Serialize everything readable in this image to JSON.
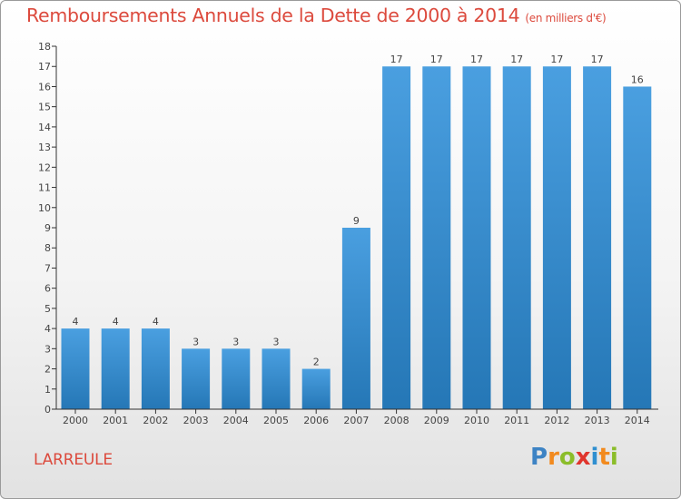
{
  "chart_data": {
    "type": "bar",
    "title": "Remboursements Annuels de la Dette de 2000 à 2014",
    "unit_note": "(en milliers d'€)",
    "categories": [
      "2000",
      "2001",
      "2002",
      "2003",
      "2004",
      "2005",
      "2006",
      "2007",
      "2008",
      "2009",
      "2010",
      "2011",
      "2012",
      "2013",
      "2014"
    ],
    "values": [
      4,
      4,
      4,
      3,
      3,
      3,
      2,
      9,
      17,
      17,
      17,
      17,
      17,
      17,
      16
    ],
    "ylim": [
      0,
      18
    ],
    "yticks": [
      0,
      1,
      2,
      3,
      4,
      5,
      6,
      7,
      8,
      9,
      10,
      11,
      12,
      13,
      14,
      15,
      16,
      17,
      18
    ],
    "xlabel": "",
    "ylabel": "",
    "grid": false,
    "bar_color": "#4a9fe0",
    "bar_color_dark": "#2577b6"
  },
  "commune": "LARREULE",
  "logo": {
    "text": "Proxiti",
    "letters": [
      "P",
      "r",
      "o",
      "x",
      "i",
      "t",
      "i"
    ],
    "colors": [
      "#3d83c4",
      "#f28a1e",
      "#8bbd2a",
      "#e0352d",
      "#2f8fd0",
      "#f28a1e",
      "#8bbd2a"
    ]
  },
  "colors": {
    "accent": "#dc4a3d",
    "axis": "#333333"
  }
}
